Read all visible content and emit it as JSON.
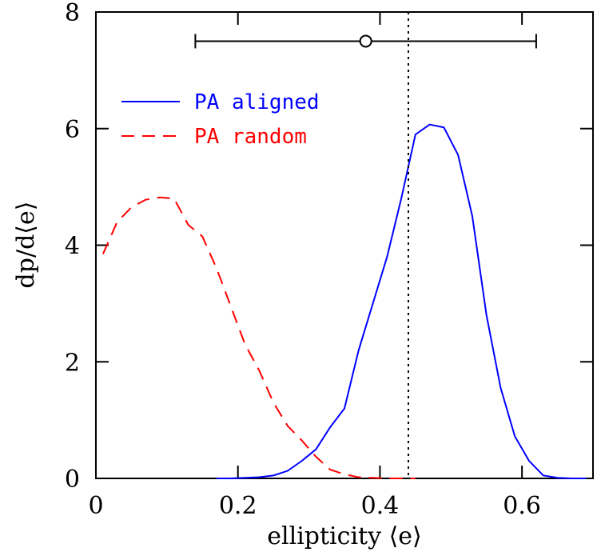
{
  "chart_data": {
    "type": "line",
    "xlabel": "ellipticity ⟨e⟩",
    "ylabel": "dp/d⟨e⟩",
    "xlim": [
      0,
      0.7
    ],
    "ylim": [
      0,
      8
    ],
    "xticks": [
      0,
      0.2,
      0.4,
      0.6
    ],
    "yticks": [
      0,
      2,
      4,
      6,
      8
    ],
    "legend": "upper left",
    "series": [
      {
        "name": "PA aligned",
        "color": "#0000ff",
        "dash": "solid",
        "x": [
          0.17,
          0.19,
          0.21,
          0.23,
          0.25,
          0.27,
          0.29,
          0.31,
          0.33,
          0.35,
          0.37,
          0.39,
          0.41,
          0.43,
          0.45,
          0.47,
          0.49,
          0.51,
          0.53,
          0.55,
          0.57,
          0.59,
          0.61,
          0.63,
          0.65,
          0.67,
          0.69
        ],
        "values": [
          0,
          0,
          0.01,
          0.02,
          0.05,
          0.13,
          0.3,
          0.5,
          0.88,
          1.2,
          2.2,
          3.0,
          3.8,
          4.8,
          5.9,
          6.07,
          6.02,
          5.55,
          4.5,
          2.8,
          1.55,
          0.72,
          0.3,
          0.05,
          0.01,
          0,
          0
        ]
      },
      {
        "name": "PA random",
        "color": "#ff0000",
        "dash": "dashed",
        "x": [
          0.01,
          0.03,
          0.05,
          0.07,
          0.09,
          0.11,
          0.13,
          0.15,
          0.17,
          0.19,
          0.21,
          0.23,
          0.25,
          0.27,
          0.29,
          0.31,
          0.33,
          0.35,
          0.37,
          0.39,
          0.41,
          0.43,
          0.45
        ],
        "values": [
          3.85,
          4.4,
          4.65,
          4.78,
          4.82,
          4.8,
          4.35,
          4.15,
          3.6,
          2.95,
          2.3,
          1.85,
          1.3,
          0.9,
          0.65,
          0.37,
          0.15,
          0.07,
          0.02,
          0.01,
          0,
          0,
          0
        ]
      }
    ],
    "reference_line": {
      "x": 0.44
    },
    "errorbar": {
      "x": 0.38,
      "xlow": 0.14,
      "xhigh": 0.62,
      "y": 7.5
    }
  }
}
